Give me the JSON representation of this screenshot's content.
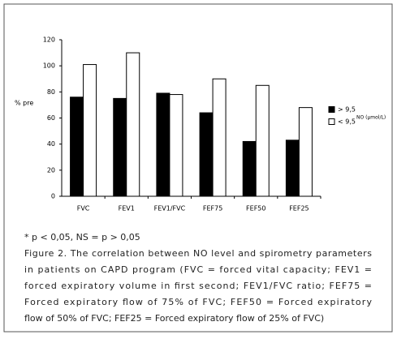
{
  "chart_data": {
    "type": "bar",
    "y_label": "% pre",
    "categories": [
      "FVC",
      "FEV1",
      "FEV1/FVC",
      "FEF75",
      "FEF50",
      "FEF25"
    ],
    "series": [
      {
        "name": "> 9,5",
        "color": "#000000",
        "values": [
          76,
          75,
          79,
          64,
          42,
          43
        ]
      },
      {
        "name": "< 9,5",
        "color": "#ffffff",
        "values": [
          101,
          110,
          78,
          90,
          85,
          68
        ]
      }
    ],
    "legend_note": "NO (µmol/L)",
    "legend_position": "right",
    "ylim": [
      0,
      120
    ],
    "yticks": [
      0,
      20,
      40,
      60,
      80,
      100,
      120
    ],
    "grid": false,
    "note": "* p < 0,05, NS = p > 0,05",
    "caption": [
      "Figure 2. The  correlation between NO level and spirometry parameters",
      "in patients on CAPD program (FVC = forced vital capacity; FEV1 =",
      "forced expiratory volume in first second; FEV1/FVC ratio; FEF75 =",
      "Forced expiratory flow of 75% of FVC; FEF50 = Forced expiratory",
      "flow of 50% of FVC; FEF25 = Forced expiratory flow of 25% of FVC)"
    ]
  }
}
